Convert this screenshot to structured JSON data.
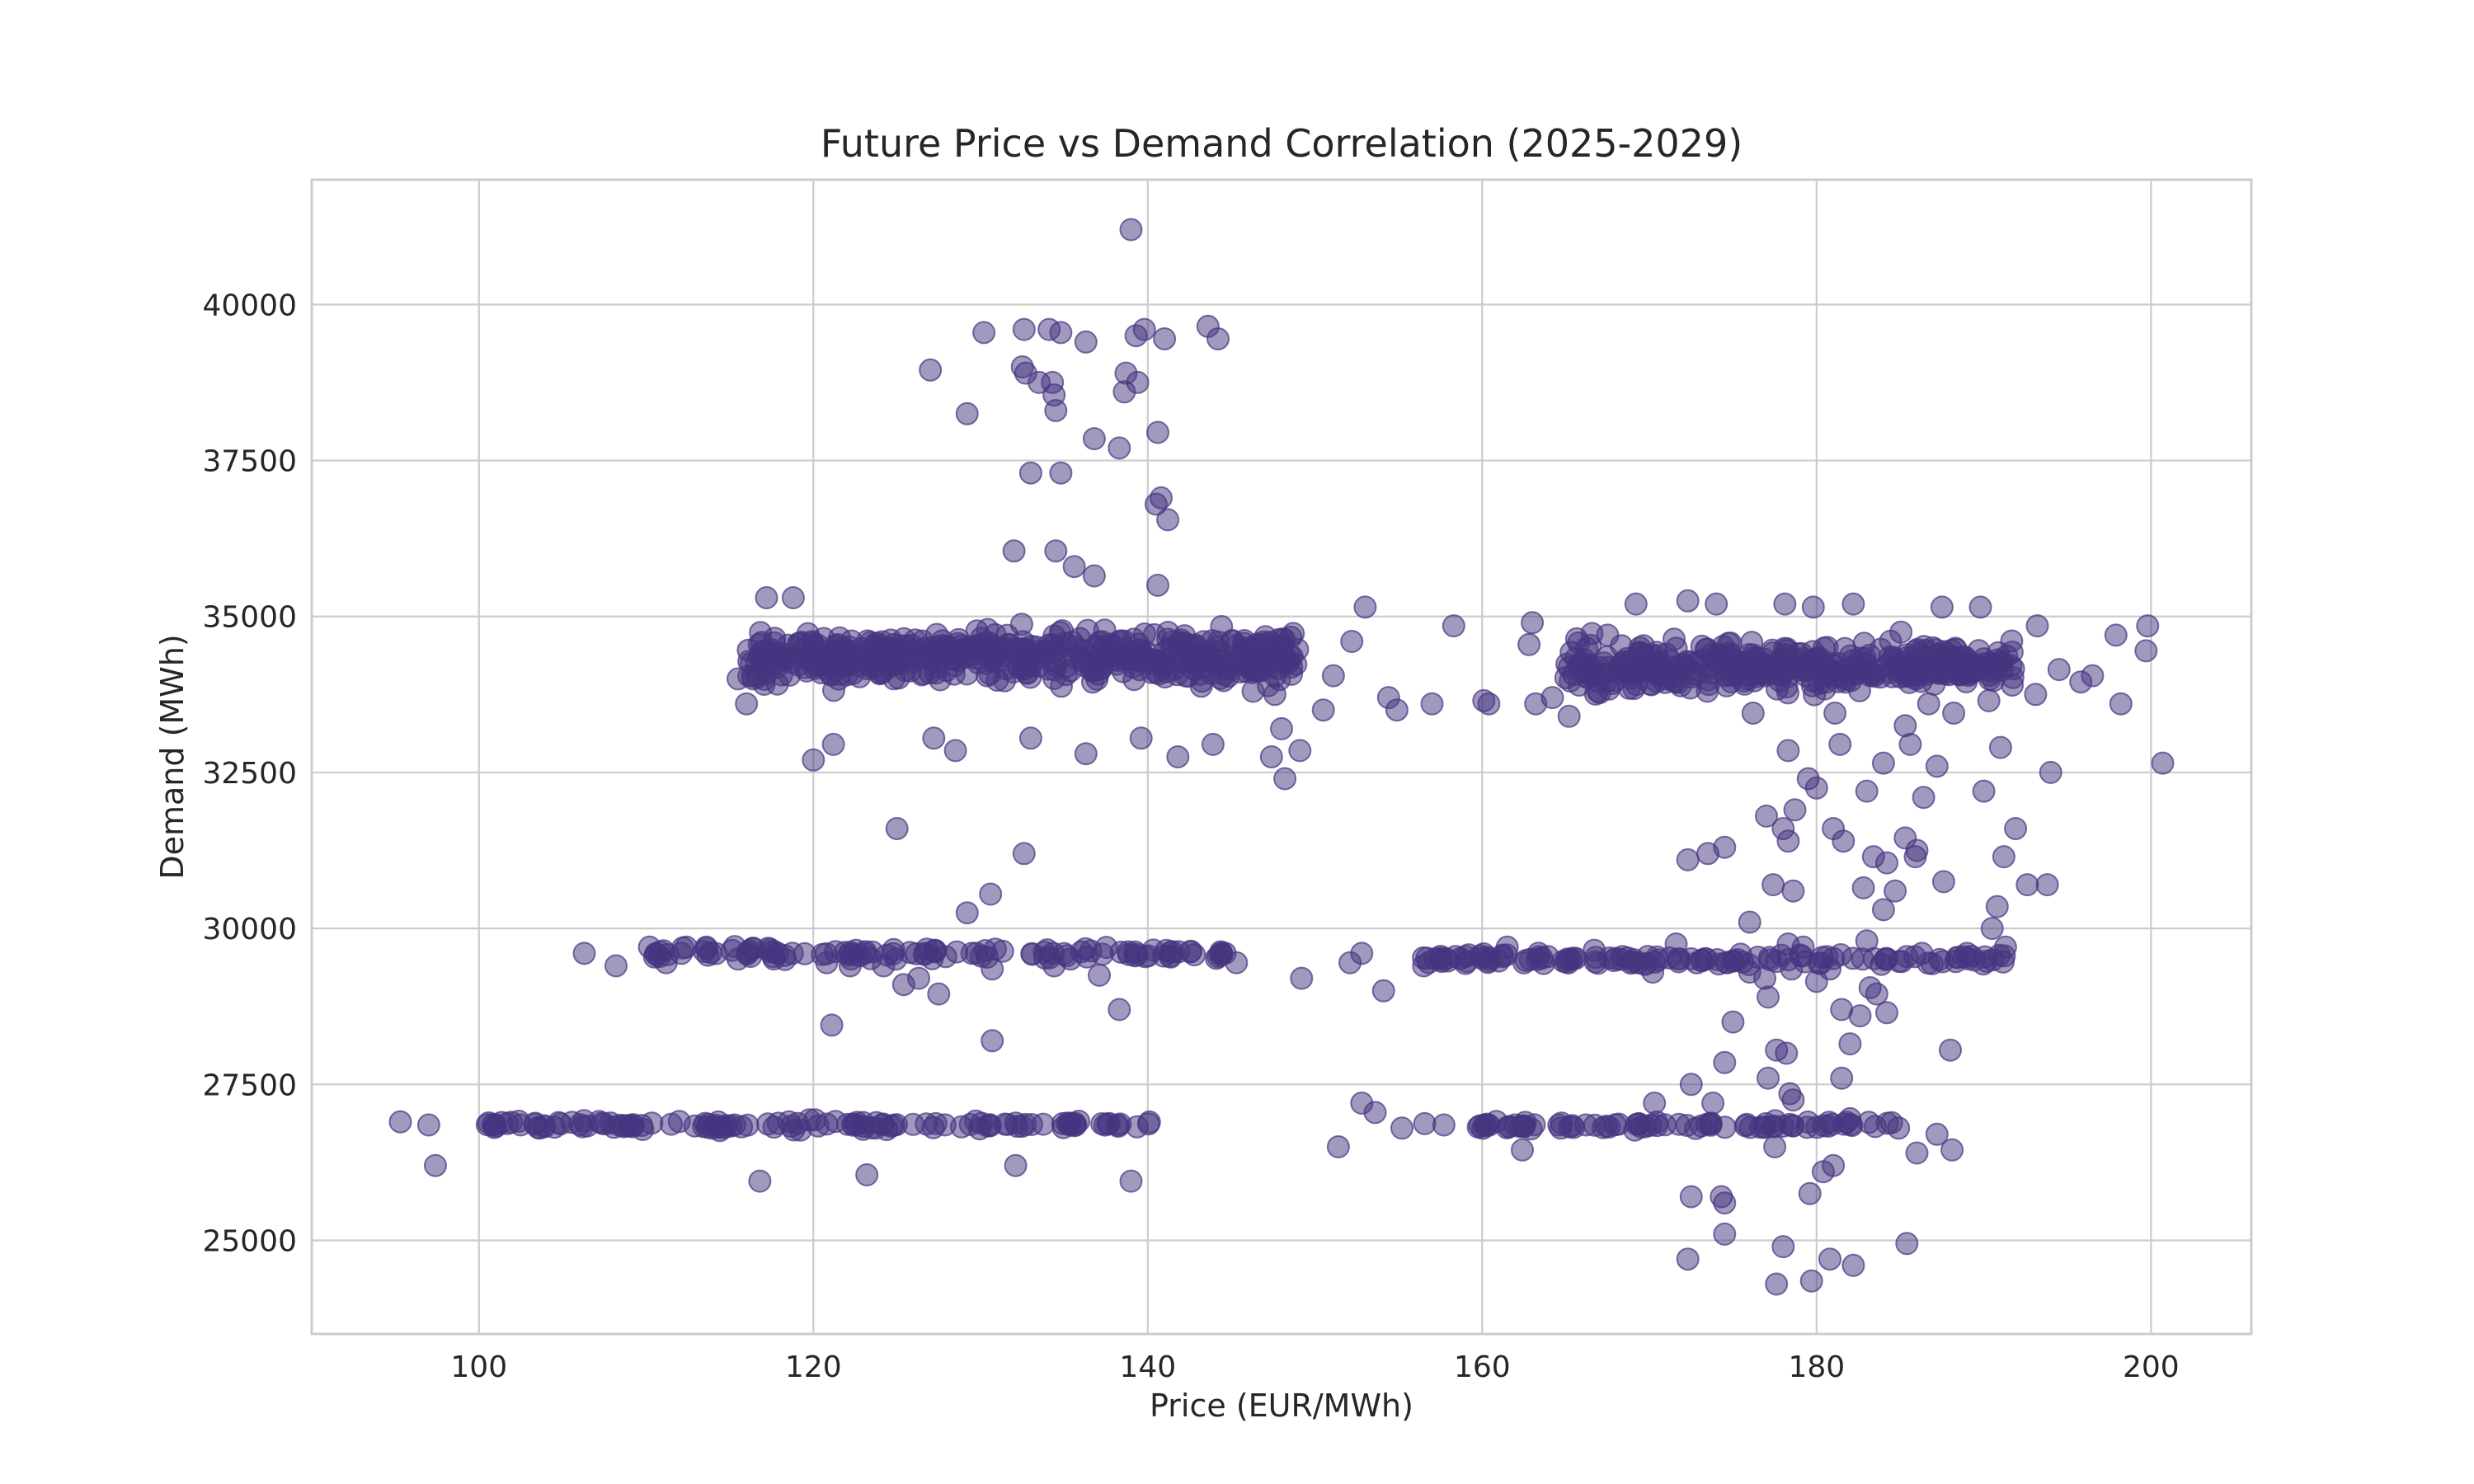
{
  "chart_data": {
    "type": "scatter",
    "title": "Future Price vs Demand Correlation (2025-2029)",
    "xlabel": "Price (EUR/MWh)",
    "ylabel": "Demand (MWh)",
    "xlim": [
      90,
      206
    ],
    "ylim": [
      23500,
      42000
    ],
    "xticks": [
      100,
      120,
      140,
      160,
      180,
      200
    ],
    "xtick_labels": [
      "100",
      "120",
      "140",
      "160",
      "180",
      "200"
    ],
    "yticks": [
      25000,
      27500,
      30000,
      32500,
      35000,
      37500,
      40000
    ],
    "ytick_labels": [
      "25000",
      "27500",
      "30000",
      "32500",
      "35000",
      "37500",
      "40000"
    ],
    "grid": true,
    "legend": "none",
    "marker_color": "#463480",
    "marker_alpha": 0.5,
    "points": [
      [
        139.0,
        41200
      ],
      [
        139.3,
        39500
      ],
      [
        139.8,
        39600
      ],
      [
        141.0,
        39450
      ],
      [
        143.6,
        39650
      ],
      [
        144.2,
        39450
      ],
      [
        130.2,
        39550
      ],
      [
        132.6,
        39600
      ],
      [
        134.1,
        39600
      ],
      [
        134.8,
        39550
      ],
      [
        136.3,
        39400
      ],
      [
        132.5,
        39000
      ],
      [
        132.7,
        38900
      ],
      [
        133.5,
        38750
      ],
      [
        134.3,
        38750
      ],
      [
        134.4,
        38550
      ],
      [
        134.5,
        38300
      ],
      [
        138.7,
        38900
      ],
      [
        138.6,
        38600
      ],
      [
        139.4,
        38750
      ],
      [
        127.0,
        38950
      ],
      [
        129.2,
        38250
      ],
      [
        136.8,
        37850
      ],
      [
        138.3,
        37700
      ],
      [
        140.6,
        37950
      ],
      [
        133.0,
        37300
      ],
      [
        134.8,
        37300
      ],
      [
        140.5,
        36800
      ],
      [
        140.8,
        36900
      ],
      [
        141.2,
        36550
      ],
      [
        132.0,
        36050
      ],
      [
        134.5,
        36050
      ],
      [
        135.6,
        35800
      ],
      [
        136.8,
        35650
      ],
      [
        140.6,
        35500
      ],
      [
        153.0,
        35150
      ],
      [
        158.3,
        34850
      ],
      [
        163.0,
        34900
      ],
      [
        169.2,
        35200
      ],
      [
        172.3,
        35250
      ],
      [
        174.0,
        35200
      ],
      [
        178.1,
        35200
      ],
      [
        179.8,
        35150
      ],
      [
        182.2,
        35200
      ],
      [
        187.5,
        35150
      ],
      [
        189.8,
        35150
      ],
      [
        193.2,
        34850
      ],
      [
        197.9,
        34700
      ],
      [
        199.8,
        34850
      ],
      [
        199.7,
        34450
      ],
      [
        198.2,
        33600
      ],
      [
        200.7,
        32650
      ],
      [
        194.0,
        32500
      ],
      [
        190.0,
        32200
      ],
      [
        191.0,
        32900
      ],
      [
        187.2,
        32600
      ],
      [
        186.4,
        32100
      ],
      [
        116.0,
        33600
      ],
      [
        116.4,
        34000
      ],
      [
        115.5,
        34000
      ],
      [
        117.2,
        35300
      ],
      [
        118.8,
        35300
      ],
      [
        120.0,
        32700
      ],
      [
        121.2,
        32950
      ],
      [
        127.2,
        33050
      ],
      [
        128.5,
        32850
      ],
      [
        133.0,
        33050
      ],
      [
        136.3,
        32800
      ],
      [
        139.6,
        33050
      ],
      [
        141.8,
        32750
      ],
      [
        143.9,
        32950
      ],
      [
        147.4,
        32750
      ],
      [
        148.0,
        33200
      ],
      [
        148.2,
        32400
      ],
      [
        149.1,
        32850
      ],
      [
        154.9,
        33500
      ],
      [
        160.4,
        33600
      ],
      [
        163.2,
        33600
      ],
      [
        165.2,
        33400
      ],
      [
        178.3,
        32850
      ],
      [
        179.5,
        32400
      ],
      [
        180.0,
        32250
      ],
      [
        181.4,
        32950
      ],
      [
        183.0,
        32200
      ],
      [
        184.0,
        32650
      ],
      [
        185.6,
        32950
      ],
      [
        125.0,
        31600
      ],
      [
        132.6,
        31200
      ],
      [
        130.6,
        30550
      ],
      [
        129.2,
        30250
      ],
      [
        130.7,
        28200
      ],
      [
        121.1,
        28450
      ],
      [
        138.3,
        28700
      ],
      [
        177.0,
        31800
      ],
      [
        178.0,
        31600
      ],
      [
        178.7,
        31900
      ],
      [
        178.3,
        31400
      ],
      [
        181.0,
        31600
      ],
      [
        181.6,
        31400
      ],
      [
        183.4,
        31150
      ],
      [
        184.2,
        31050
      ],
      [
        184.7,
        30600
      ],
      [
        185.3,
        31450
      ],
      [
        185.9,
        31150
      ],
      [
        186.0,
        31250
      ],
      [
        187.6,
        30750
      ],
      [
        190.8,
        30350
      ],
      [
        191.2,
        31150
      ],
      [
        191.9,
        31600
      ],
      [
        192.6,
        30700
      ],
      [
        193.8,
        30700
      ],
      [
        172.3,
        31100
      ],
      [
        173.5,
        31200
      ],
      [
        174.5,
        31300
      ],
      [
        176.0,
        30100
      ],
      [
        177.4,
        30700
      ],
      [
        178.6,
        30600
      ],
      [
        178.3,
        29750
      ],
      [
        182.8,
        30650
      ],
      [
        184.0,
        30300
      ],
      [
        181.5,
        28700
      ],
      [
        182.6,
        28600
      ],
      [
        183.6,
        28950
      ],
      [
        184.2,
        28650
      ],
      [
        183.0,
        29800
      ],
      [
        176.0,
        29300
      ],
      [
        175.0,
        28500
      ],
      [
        186.3,
        29600
      ],
      [
        188.0,
        28050
      ],
      [
        189.0,
        29600
      ],
      [
        190.5,
        30000
      ],
      [
        191.3,
        29700
      ],
      [
        182.0,
        28150
      ],
      [
        178.2,
        28000
      ],
      [
        177.6,
        28050
      ],
      [
        177.1,
        27600
      ],
      [
        174.5,
        27850
      ],
      [
        178.4,
        27350
      ],
      [
        178.6,
        27250
      ],
      [
        181.5,
        27600
      ],
      [
        182.0,
        26950
      ],
      [
        187.2,
        26700
      ],
      [
        188.1,
        26450
      ],
      [
        184.9,
        26800
      ],
      [
        180.4,
        26100
      ],
      [
        181.0,
        26200
      ],
      [
        177.5,
        26500
      ],
      [
        179.6,
        25750
      ],
      [
        172.5,
        25700
      ],
      [
        174.3,
        25700
      ],
      [
        174.5,
        25600
      ],
      [
        174.5,
        25100
      ],
      [
        178.0,
        24900
      ],
      [
        180.8,
        24700
      ],
      [
        182.2,
        24600
      ],
      [
        185.4,
        24950
      ],
      [
        172.3,
        24700
      ],
      [
        177.6,
        24300
      ],
      [
        179.7,
        24350
      ],
      [
        116.8,
        25950
      ],
      [
        123.2,
        26050
      ],
      [
        132.1,
        26200
      ],
      [
        139.0,
        25950
      ],
      [
        97.4,
        26200
      ],
      [
        95.3,
        26900
      ],
      [
        97.0,
        26850
      ],
      [
        151.4,
        26500
      ],
      [
        162.4,
        26450
      ],
      [
        155.2,
        26800
      ],
      [
        152.8,
        27200
      ],
      [
        153.6,
        27050
      ],
      [
        170.3,
        27200
      ],
      [
        172.5,
        27500
      ],
      [
        173.8,
        27200
      ],
      [
        166.2,
        26850
      ],
      [
        164.7,
        26800
      ],
      [
        186.0,
        26400
      ],
      [
        108.2,
        29400
      ],
      [
        106.3,
        29600
      ],
      [
        110.2,
        29700
      ],
      [
        110.8,
        29550
      ],
      [
        111.2,
        29450
      ],
      [
        112.4,
        29700
      ],
      [
        113.6,
        29700
      ],
      [
        118.3,
        29500
      ],
      [
        120.8,
        29450
      ],
      [
        122.2,
        29400
      ],
      [
        124.2,
        29400
      ],
      [
        125.4,
        29100
      ],
      [
        126.3,
        29200
      ],
      [
        127.5,
        28950
      ],
      [
        130.7,
        29350
      ],
      [
        134.4,
        29400
      ],
      [
        137.1,
        29250
      ],
      [
        145.3,
        29450
      ],
      [
        149.2,
        29200
      ],
      [
        152.1,
        29450
      ],
      [
        152.8,
        29600
      ],
      [
        154.1,
        29000
      ],
      [
        156.5,
        29400
      ],
      [
        157.5,
        29500
      ],
      [
        159.0,
        29550
      ],
      [
        161.5,
        29700
      ],
      [
        163.3,
        29500
      ],
      [
        165.3,
        29500
      ],
      [
        166.7,
        29650
      ],
      [
        168.4,
        29550
      ],
      [
        169.3,
        29450
      ],
      [
        170.2,
        29300
      ],
      [
        171.6,
        29750
      ],
      [
        176.9,
        29200
      ],
      [
        177.1,
        28900
      ],
      [
        178.5,
        29350
      ],
      [
        180.0,
        29150
      ],
      [
        180.8,
        29350
      ],
      [
        183.2,
        29050
      ],
      [
        179.2,
        29700
      ],
      [
        185.4,
        29550
      ],
      [
        145.0,
        34150
      ],
      [
        146.3,
        33800
      ],
      [
        147.6,
        33750
      ],
      [
        150.5,
        33500
      ],
      [
        151.1,
        34050
      ],
      [
        152.2,
        34600
      ],
      [
        154.4,
        33700
      ],
      [
        157.0,
        33600
      ],
      [
        160.1,
        33650
      ],
      [
        162.8,
        34550
      ],
      [
        164.2,
        33700
      ],
      [
        165.8,
        33900
      ],
      [
        167.5,
        34700
      ],
      [
        168.8,
        33850
      ],
      [
        176.2,
        33450
      ],
      [
        181.1,
        33450
      ],
      [
        185.3,
        33250
      ],
      [
        186.7,
        33600
      ],
      [
        188.2,
        33450
      ],
      [
        190.3,
        33650
      ],
      [
        191.7,
        33900
      ],
      [
        193.1,
        33750
      ],
      [
        194.5,
        34150
      ],
      [
        195.8,
        33950
      ],
      [
        196.5,
        34050
      ]
    ],
    "bands": [
      {
        "x_range": [
          116,
          149
        ],
        "y_center": 34350,
        "y_spread": 700,
        "count": 500
      },
      {
        "x_range": [
          165,
          192
        ],
        "y_center": 34200,
        "y_spread": 650,
        "count": 380
      },
      {
        "x_range": [
          110,
          145
        ],
        "y_center": 29600,
        "y_spread": 170,
        "count": 110
      },
      {
        "x_range": [
          156,
          192
        ],
        "y_center": 29500,
        "y_spread": 170,
        "count": 120
      },
      {
        "x_range": [
          100,
          141
        ],
        "y_center": 26850,
        "y_spread": 130,
        "count": 130
      },
      {
        "x_range": [
          156,
          185
        ],
        "y_center": 26850,
        "y_spread": 130,
        "count": 80
      }
    ]
  }
}
